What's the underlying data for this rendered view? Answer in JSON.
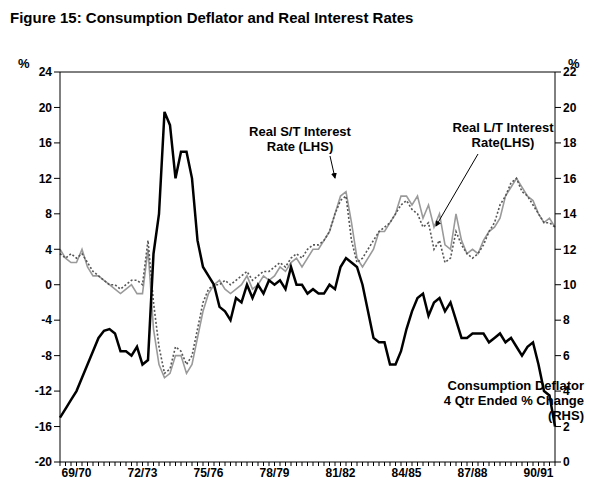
{
  "chart_data": {
    "type": "line",
    "title": "Figure 15: Consumption Deflator and Real Interest Rates",
    "y_label": "%",
    "y2_label": "%",
    "categories": [
      null,
      null,
      null,
      "69/70",
      null,
      null,
      null,
      null,
      null,
      null,
      null,
      null,
      null,
      null,
      null,
      "72/73",
      null,
      null,
      null,
      null,
      null,
      null,
      null,
      null,
      null,
      null,
      null,
      "75/76",
      null,
      null,
      null,
      null,
      null,
      null,
      null,
      null,
      null,
      null,
      null,
      "78/79",
      null,
      null,
      null,
      null,
      null,
      null,
      null,
      null,
      null,
      null,
      null,
      "81/82",
      null,
      null,
      null,
      null,
      null,
      null,
      null,
      null,
      null,
      null,
      null,
      "84/85",
      null,
      null,
      null,
      null,
      null,
      null,
      null,
      null,
      null,
      null,
      null,
      "87/88",
      null,
      null,
      null,
      null,
      null,
      null,
      null,
      null,
      null,
      null,
      null,
      "90/91",
      null,
      null,
      null
    ],
    "series": [
      {
        "name": "Real S/T Interest Rate (LHS)",
        "color": "#9a9a9a",
        "line_style": "solid",
        "axis": "y",
        "values": [
          4,
          3,
          2.5,
          2.5,
          4,
          2,
          1,
          1,
          0.5,
          0,
          -0.5,
          -1,
          -0.5,
          0,
          -1,
          -1,
          4,
          -5,
          -9,
          -10.5,
          -10,
          -8,
          -8,
          -10,
          -9,
          -6,
          -3,
          -1,
          0,
          0.5,
          -0.5,
          -1,
          -0.5,
          0,
          1,
          -0.5,
          0,
          1,
          0.5,
          1,
          2,
          1.5,
          2.5,
          3,
          2,
          3,
          4,
          4,
          5,
          6,
          8,
          10,
          10.5,
          7,
          3,
          2,
          3,
          4,
          6,
          6,
          7,
          8,
          10,
          10,
          9,
          10,
          7.5,
          9,
          6.5,
          8,
          4.5,
          4,
          8,
          5,
          3.5,
          4,
          3.5,
          5,
          6,
          6.5,
          7.5,
          10,
          11,
          12,
          11,
          10,
          9.5,
          8,
          7,
          7.5,
          6.5
        ]
      },
      {
        "name": "Real L/T Interest Rate(LHS)",
        "color": "#555555",
        "line_style": "dotted",
        "axis": "y",
        "values": [
          3.5,
          3,
          3.5,
          3,
          3.5,
          2.5,
          1.5,
          1,
          0.5,
          0,
          0,
          -0.5,
          0,
          0.5,
          0.5,
          0,
          5,
          -2,
          -7,
          -10,
          -9.5,
          -7,
          -7.5,
          -9,
          -8,
          -5,
          -2,
          -0.5,
          0,
          0,
          0.5,
          0,
          0.5,
          1,
          1.5,
          0.5,
          1,
          1.5,
          1.5,
          2,
          2.5,
          2,
          3,
          3.5,
          3,
          4,
          4.5,
          4.5,
          5,
          6,
          8,
          9.5,
          10,
          5,
          2.5,
          3,
          4,
          5,
          6,
          6.5,
          7,
          8,
          9,
          9.5,
          8.5,
          8,
          6.5,
          7,
          4,
          5,
          2.5,
          3,
          6,
          4.5,
          3.5,
          3,
          3.5,
          4.5,
          6,
          7,
          9,
          10,
          11.5,
          12,
          10.5,
          10,
          9,
          8,
          7,
          7,
          6.5
        ]
      },
      {
        "name": "Consumption Deflator 4 Qtr Ended % Change (RHS)",
        "color": "#000000",
        "line_style": "solid",
        "axis": "y2",
        "values": [
          2.5,
          3,
          3.5,
          4,
          4.75,
          5.5,
          6.25,
          7,
          7.4,
          7.5,
          7.25,
          6.25,
          6.25,
          6,
          6.5,
          5.5,
          5.75,
          11.75,
          14,
          19.75,
          19,
          16,
          17.5,
          17.5,
          16,
          12.5,
          11,
          10.5,
          10,
          8.75,
          8.5,
          8,
          9.25,
          9,
          10,
          9.25,
          10,
          9.5,
          10.25,
          10,
          10.25,
          9.75,
          11,
          10,
          10,
          9.5,
          9.75,
          9.5,
          9.5,
          10,
          9.75,
          11,
          11.5,
          11.25,
          11,
          10,
          8.5,
          7,
          6.75,
          6.75,
          5.5,
          5.5,
          6.25,
          7.5,
          8.5,
          9.25,
          9.5,
          8.25,
          9,
          9.25,
          8.5,
          9,
          8,
          7,
          7,
          7.25,
          7.25,
          7.25,
          6.75,
          7,
          7.25,
          6.75,
          7,
          6.5,
          6,
          6.5,
          6.75,
          5.5,
          4,
          3.75,
          2
        ]
      }
    ],
    "ylim": [
      -20,
      24
    ],
    "yticks": [
      -20,
      -16,
      -12,
      -8,
      -4,
      0,
      4,
      8,
      12,
      16,
      20,
      24
    ],
    "y2lim": [
      0,
      22
    ],
    "y2ticks": [
      0,
      2,
      4,
      6,
      8,
      10,
      12,
      14,
      16,
      18,
      20,
      22
    ],
    "grid": false,
    "annotations": [
      "Real S/T Interest\nRate (LHS)",
      "Real L/T Interest\nRate(LHS)",
      "Consumption Deflator\n4 Qtr Ended % Change\n(RHS)"
    ]
  }
}
